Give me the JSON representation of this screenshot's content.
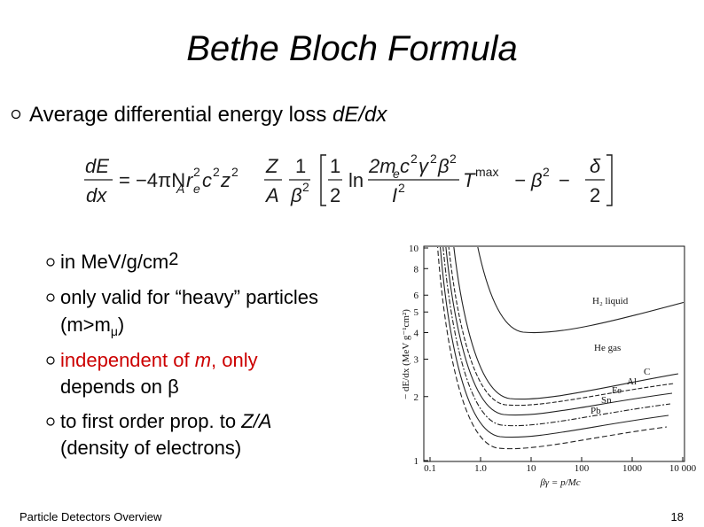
{
  "title": "Bethe Bloch Formula",
  "bullet": {
    "text": "Average differential energy loss ",
    "emph": "dE/dx"
  },
  "formula": [
    "dE",
    "dx",
    "= −4πN",
    "A",
    "r",
    "2",
    "e",
    "c",
    "2",
    "z",
    "2",
    "Z",
    "A",
    "1",
    "β",
    "2",
    "1",
    "2",
    "ln",
    "2m",
    "e",
    "c",
    "2",
    "γ",
    "2",
    "β",
    "2",
    "I",
    "2",
    "T",
    "max",
    "− β",
    "2",
    "−",
    "δ",
    "2"
  ],
  "items": [
    {
      "text": "in MeV/g/cm",
      "sup": "2"
    },
    {
      "text": "only valid for “heavy” particles",
      "line2": "(m>m",
      "sub": "μ",
      "line2_end": ")"
    },
    {
      "text": "independent of ",
      "emph": "m",
      "text_end": ", only",
      "line2": "depends on β"
    },
    {
      "text": "to first order prop. to ",
      "emph": "Z/A",
      "line2": "(density of electrons)"
    }
  ],
  "plot": {
    "y_label": "− dE/dx (MeV g⁻¹cm²)",
    "x_label": "βγ = p/Mc",
    "xlim": [
      0.1,
      10000
    ],
    "ylim": [
      1,
      10
    ],
    "x_ticks": [
      {
        "value": 0.1,
        "label": "0.1"
      },
      {
        "value": 1,
        "label": "1.0"
      },
      10,
      100,
      1000,
      {
        "value": 10000,
        "label": "10 000"
      }
    ],
    "y_ticks": [
      10,
      8,
      6,
      5,
      4,
      3,
      2,
      1
    ],
    "curve_labels": [
      "H₂ liquid",
      "He gas",
      "C",
      "Al",
      "Fe",
      "Sn",
      "Pb"
    ]
  },
  "footer": {
    "left": "Particle Detectors Overview",
    "page": "18"
  }
}
